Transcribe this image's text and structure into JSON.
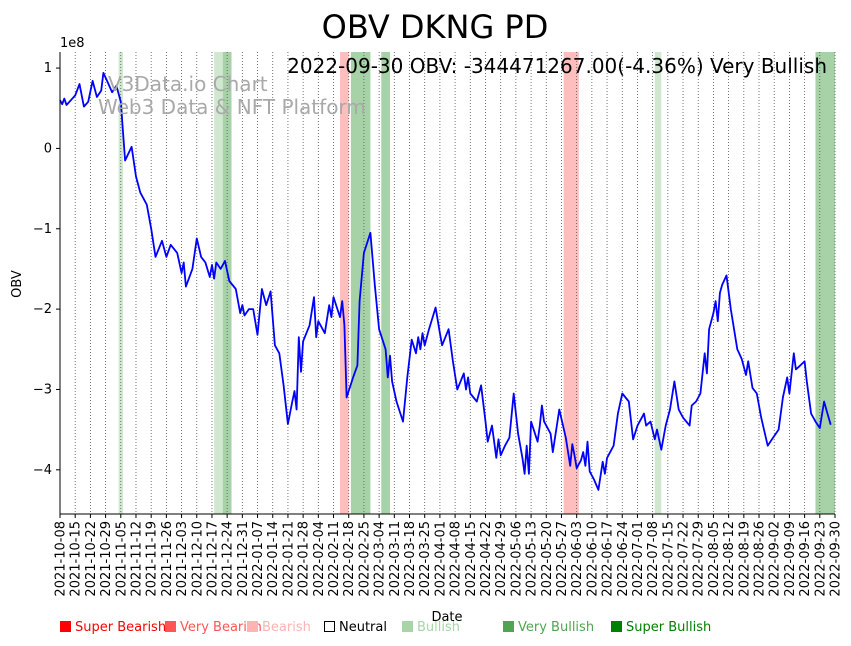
{
  "chart_data": {
    "type": "line",
    "title": "OBV DKNG PD",
    "xlabel": "Date",
    "ylabel": "OBV",
    "y_scale_label": "1e8",
    "y_scale": 100000000,
    "ylim": [
      -4.55,
      1.2
    ],
    "yticks": [
      1,
      0,
      -1,
      -2,
      -3,
      -4
    ],
    "ytick_labels": [
      "1",
      "0",
      "−1",
      "−2",
      "−3",
      "−4"
    ],
    "xlim": [
      "2021-10-08",
      "2022-09-30"
    ],
    "xtick_labels": [
      "2021-10-08",
      "2021-10-15",
      "2021-10-22",
      "2021-10-29",
      "2021-11-05",
      "2021-11-12",
      "2021-11-19",
      "2021-11-26",
      "2021-12-03",
      "2021-12-10",
      "2021-12-17",
      "2021-12-24",
      "2021-12-31",
      "2022-01-07",
      "2022-01-14",
      "2022-01-21",
      "2022-01-28",
      "2022-02-04",
      "2022-02-11",
      "2022-02-18",
      "2022-02-25",
      "2022-03-04",
      "2022-03-11",
      "2022-03-18",
      "2022-03-25",
      "2022-04-01",
      "2022-04-08",
      "2022-04-15",
      "2022-04-22",
      "2022-04-29",
      "2022-05-06",
      "2022-05-13",
      "2022-05-20",
      "2022-05-27",
      "2022-06-03",
      "2022-06-10",
      "2022-06-17",
      "2022-06-24",
      "2022-07-01",
      "2022-07-08",
      "2022-07-15",
      "2022-07-22",
      "2022-07-29",
      "2022-08-05",
      "2022-08-12",
      "2022-08-19",
      "2022-08-26",
      "2022-09-02",
      "2022-09-09",
      "2022-09-16",
      "2022-09-23",
      "2022-09-30"
    ],
    "annotation": "2022-09-30 OBV: -344471267.00(-4.36%) Very Bullish",
    "watermark_lines": [
      "V3Data.io Chart",
      "Web3 Data & NFT Platform"
    ],
    "grid": "vertical dotted",
    "line_color": "#0000ff",
    "series": [
      {
        "points": [
          [
            "2021-10-08",
            0.6
          ],
          [
            "2021-10-09",
            0.55
          ],
          [
            "2021-10-10",
            0.62
          ],
          [
            "2021-10-11",
            0.54
          ],
          [
            "2021-10-13",
            0.6
          ],
          [
            "2021-10-15",
            0.66
          ],
          [
            "2021-10-17",
            0.8
          ],
          [
            "2021-10-19",
            0.52
          ],
          [
            "2021-10-21",
            0.58
          ],
          [
            "2021-10-23",
            0.84
          ],
          [
            "2021-10-25",
            0.64
          ],
          [
            "2021-10-27",
            0.72
          ],
          [
            "2021-10-28",
            0.94
          ],
          [
            "2021-10-30",
            0.82
          ],
          [
            "2021-11-01",
            0.7
          ],
          [
            "2021-11-03",
            0.78
          ],
          [
            "2021-11-05",
            0.58
          ],
          [
            "2021-11-07",
            -0.15
          ],
          [
            "2021-11-10",
            0.02
          ],
          [
            "2021-11-12",
            -0.35
          ],
          [
            "2021-11-14",
            -0.55
          ],
          [
            "2021-11-17",
            -0.7
          ],
          [
            "2021-11-19",
            -1.0
          ],
          [
            "2021-11-21",
            -1.35
          ],
          [
            "2021-11-24",
            -1.15
          ],
          [
            "2021-11-26",
            -1.35
          ],
          [
            "2021-11-28",
            -1.2
          ],
          [
            "2021-12-01",
            -1.3
          ],
          [
            "2021-12-03",
            -1.55
          ],
          [
            "2021-12-04",
            -1.42
          ],
          [
            "2021-12-05",
            -1.72
          ],
          [
            "2021-12-08",
            -1.5
          ],
          [
            "2021-12-10",
            -1.12
          ],
          [
            "2021-12-12",
            -1.35
          ],
          [
            "2021-12-14",
            -1.42
          ],
          [
            "2021-12-16",
            -1.6
          ],
          [
            "2021-12-17",
            -1.45
          ],
          [
            "2021-12-18",
            -1.62
          ],
          [
            "2021-12-19",
            -1.42
          ],
          [
            "2021-12-21",
            -1.5
          ],
          [
            "2021-12-23",
            -1.4
          ],
          [
            "2021-12-25",
            -1.65
          ],
          [
            "2021-12-28",
            -1.75
          ],
          [
            "2021-12-30",
            -2.05
          ],
          [
            "2021-12-31",
            -1.95
          ],
          [
            "2022-01-01",
            -2.08
          ],
          [
            "2022-01-03",
            -2.0
          ],
          [
            "2022-01-05",
            -2.0
          ],
          [
            "2022-01-07",
            -2.32
          ],
          [
            "2022-01-09",
            -1.75
          ],
          [
            "2022-01-11",
            -1.95
          ],
          [
            "2022-01-13",
            -1.78
          ],
          [
            "2022-01-15",
            -2.45
          ],
          [
            "2022-01-17",
            -2.55
          ],
          [
            "2022-01-19",
            -2.95
          ],
          [
            "2022-01-21",
            -3.43
          ],
          [
            "2022-01-23",
            -3.15
          ],
          [
            "2022-01-24",
            -3.02
          ],
          [
            "2022-01-25",
            -3.25
          ],
          [
            "2022-01-26",
            -2.35
          ],
          [
            "2022-01-27",
            -2.78
          ],
          [
            "2022-01-28",
            -2.4
          ],
          [
            "2022-01-31",
            -2.2
          ],
          [
            "2022-02-02",
            -1.85
          ],
          [
            "2022-02-03",
            -2.35
          ],
          [
            "2022-02-04",
            -2.15
          ],
          [
            "2022-02-07",
            -2.3
          ],
          [
            "2022-02-09",
            -1.95
          ],
          [
            "2022-02-10",
            -2.1
          ],
          [
            "2022-02-11",
            -1.85
          ],
          [
            "2022-02-14",
            -2.1
          ],
          [
            "2022-02-15",
            -1.9
          ],
          [
            "2022-02-16",
            -2.2
          ],
          [
            "2022-02-17",
            -3.1
          ],
          [
            "2022-02-20",
            -2.85
          ],
          [
            "2022-02-22",
            -2.7
          ],
          [
            "2022-02-23",
            -1.9
          ],
          [
            "2022-02-25",
            -1.3
          ],
          [
            "2022-02-28",
            -1.05
          ],
          [
            "2022-03-02",
            -1.7
          ],
          [
            "2022-03-04",
            -2.25
          ],
          [
            "2022-03-07",
            -2.5
          ],
          [
            "2022-03-08",
            -2.85
          ],
          [
            "2022-03-09",
            -2.58
          ],
          [
            "2022-03-10",
            -2.9
          ],
          [
            "2022-03-12",
            -3.15
          ],
          [
            "2022-03-15",
            -3.4
          ],
          [
            "2022-03-17",
            -2.85
          ],
          [
            "2022-03-19",
            -2.38
          ],
          [
            "2022-03-21",
            -2.55
          ],
          [
            "2022-03-22",
            -2.35
          ],
          [
            "2022-03-23",
            -2.5
          ],
          [
            "2022-03-24",
            -2.3
          ],
          [
            "2022-03-25",
            -2.45
          ],
          [
            "2022-03-27",
            -2.25
          ],
          [
            "2022-03-30",
            -1.98
          ],
          [
            "2022-04-01",
            -2.3
          ],
          [
            "2022-04-02",
            -2.45
          ],
          [
            "2022-04-05",
            -2.25
          ],
          [
            "2022-04-07",
            -2.65
          ],
          [
            "2022-04-09",
            -3.0
          ],
          [
            "2022-04-12",
            -2.8
          ],
          [
            "2022-04-13",
            -3.0
          ],
          [
            "2022-04-14",
            -2.85
          ],
          [
            "2022-04-15",
            -3.05
          ],
          [
            "2022-04-18",
            -3.15
          ],
          [
            "2022-04-20",
            -2.95
          ],
          [
            "2022-04-22",
            -3.4
          ],
          [
            "2022-04-23",
            -3.65
          ],
          [
            "2022-04-25",
            -3.45
          ],
          [
            "2022-04-27",
            -3.85
          ],
          [
            "2022-04-28",
            -3.62
          ],
          [
            "2022-04-29",
            -3.82
          ],
          [
            "2022-05-01",
            -3.7
          ],
          [
            "2022-05-03",
            -3.6
          ],
          [
            "2022-05-05",
            -3.05
          ],
          [
            "2022-05-07",
            -3.55
          ],
          [
            "2022-05-09",
            -3.85
          ],
          [
            "2022-05-10",
            -4.05
          ],
          [
            "2022-05-11",
            -3.7
          ],
          [
            "2022-05-12",
            -4.05
          ],
          [
            "2022-05-13",
            -3.4
          ],
          [
            "2022-05-16",
            -3.65
          ],
          [
            "2022-05-17",
            -3.45
          ],
          [
            "2022-05-18",
            -3.2
          ],
          [
            "2022-05-19",
            -3.4
          ],
          [
            "2022-05-22",
            -3.55
          ],
          [
            "2022-05-23",
            -3.78
          ],
          [
            "2022-05-26",
            -3.25
          ],
          [
            "2022-05-29",
            -3.6
          ],
          [
            "2022-05-31",
            -3.95
          ],
          [
            "2022-06-01",
            -3.68
          ],
          [
            "2022-06-02",
            -3.82
          ],
          [
            "2022-06-03",
            -3.98
          ],
          [
            "2022-06-05",
            -3.88
          ],
          [
            "2022-06-06",
            -3.78
          ],
          [
            "2022-06-07",
            -3.95
          ],
          [
            "2022-06-08",
            -3.65
          ],
          [
            "2022-06-09",
            -4.02
          ],
          [
            "2022-06-11",
            -4.12
          ],
          [
            "2022-06-13",
            -4.25
          ],
          [
            "2022-06-15",
            -3.9
          ],
          [
            "2022-06-16",
            -4.05
          ],
          [
            "2022-06-17",
            -3.85
          ],
          [
            "2022-06-20",
            -3.7
          ],
          [
            "2022-06-22",
            -3.3
          ],
          [
            "2022-06-24",
            -3.05
          ],
          [
            "2022-06-27",
            -3.15
          ],
          [
            "2022-06-29",
            -3.62
          ],
          [
            "2022-07-01",
            -3.45
          ],
          [
            "2022-07-04",
            -3.3
          ],
          [
            "2022-07-05",
            -3.45
          ],
          [
            "2022-07-07",
            -3.4
          ],
          [
            "2022-07-09",
            -3.62
          ],
          [
            "2022-07-10",
            -3.5
          ],
          [
            "2022-07-12",
            -3.75
          ],
          [
            "2022-07-14",
            -3.45
          ],
          [
            "2022-07-16",
            -3.25
          ],
          [
            "2022-07-18",
            -2.9
          ],
          [
            "2022-07-20",
            -3.25
          ],
          [
            "2022-07-22",
            -3.35
          ],
          [
            "2022-07-25",
            -3.45
          ],
          [
            "2022-07-26",
            -3.2
          ],
          [
            "2022-07-28",
            -3.15
          ],
          [
            "2022-07-30",
            -3.05
          ],
          [
            "2022-08-01",
            -2.55
          ],
          [
            "2022-08-02",
            -2.8
          ],
          [
            "2022-08-03",
            -2.25
          ],
          [
            "2022-08-05",
            -2.05
          ],
          [
            "2022-08-06",
            -1.9
          ],
          [
            "2022-08-07",
            -2.15
          ],
          [
            "2022-08-08",
            -1.8
          ],
          [
            "2022-08-09",
            -1.7
          ],
          [
            "2022-08-11",
            -1.58
          ],
          [
            "2022-08-13",
            -2.0
          ],
          [
            "2022-08-16",
            -2.5
          ],
          [
            "2022-08-18",
            -2.62
          ],
          [
            "2022-08-20",
            -2.82
          ],
          [
            "2022-08-21",
            -2.65
          ],
          [
            "2022-08-23",
            -2.98
          ],
          [
            "2022-08-25",
            -3.05
          ],
          [
            "2022-08-27",
            -3.35
          ],
          [
            "2022-08-30",
            -3.7
          ],
          [
            "2022-09-01",
            -3.62
          ],
          [
            "2022-09-04",
            -3.5
          ],
          [
            "2022-09-06",
            -3.1
          ],
          [
            "2022-09-08",
            -2.85
          ],
          [
            "2022-09-09",
            -3.05
          ],
          [
            "2022-09-11",
            -2.55
          ],
          [
            "2022-09-12",
            -2.75
          ],
          [
            "2022-09-14",
            -2.7
          ],
          [
            "2022-09-16",
            -2.65
          ],
          [
            "2022-09-17",
            -2.9
          ],
          [
            "2022-09-19",
            -3.3
          ],
          [
            "2022-09-21",
            -3.4
          ],
          [
            "2022-09-23",
            -3.48
          ],
          [
            "2022-09-25",
            -3.15
          ],
          [
            "2022-09-26",
            -3.25
          ],
          [
            "2022-09-28",
            -3.44
          ]
        ]
      }
    ],
    "signal_bands": [
      {
        "start": "2021-11-04",
        "end": "2021-11-06",
        "signal": "Bullish"
      },
      {
        "start": "2021-12-18",
        "end": "2021-12-22",
        "signal": "Bullish"
      },
      {
        "start": "2021-12-22",
        "end": "2021-12-26",
        "signal": "Very Bullish"
      },
      {
        "start": "2022-02-14",
        "end": "2022-02-18",
        "signal": "Bearish"
      },
      {
        "start": "2022-02-19",
        "end": "2022-02-28",
        "signal": "Very Bullish"
      },
      {
        "start": "2022-03-05",
        "end": "2022-03-09",
        "signal": "Very Bullish"
      },
      {
        "start": "2022-05-28",
        "end": "2022-06-04",
        "signal": "Bearish"
      },
      {
        "start": "2022-07-09",
        "end": "2022-07-12",
        "signal": "Bullish"
      },
      {
        "start": "2022-09-21",
        "end": "2022-09-23",
        "signal": "Very Bullish"
      },
      {
        "start": "2022-09-23",
        "end": "2022-09-30",
        "signal": "Very Bullish"
      }
    ],
    "legend": [
      {
        "label": "Super Bearish",
        "color": "#ff0000"
      },
      {
        "label": "Very Bearish",
        "color": "#ff5555"
      },
      {
        "label": "Bearish",
        "color": "#ffb3b3"
      },
      {
        "label": "Neutral",
        "color": "#ffffff",
        "text_color": "#000000"
      },
      {
        "label": "Bullish",
        "color": "#a8d5a8"
      },
      {
        "label": "Very Bullish",
        "color": "#4fa64f"
      },
      {
        "label": "Super Bullish",
        "color": "#008000"
      }
    ],
    "band_colors": {
      "Bullish": "#a8d5a8",
      "Very Bullish": "#4fa64f",
      "Bearish": "#ffb3b3"
    },
    "band_opacity": {
      "Bullish": 0.55,
      "Very Bullish": 0.5,
      "Bearish": 0.85
    }
  }
}
